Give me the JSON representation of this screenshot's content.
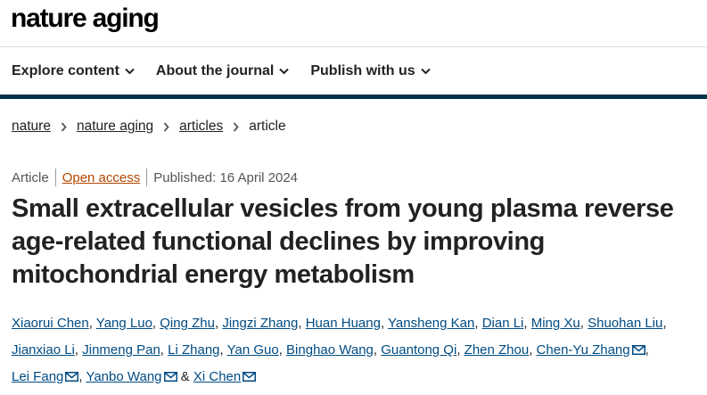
{
  "site": {
    "logo": "nature aging"
  },
  "nav": {
    "items": [
      {
        "label": "Explore content"
      },
      {
        "label": "About the journal"
      },
      {
        "label": "Publish with us"
      }
    ]
  },
  "breadcrumb": {
    "items": [
      "nature",
      "nature aging",
      "articles"
    ],
    "current": "article"
  },
  "article": {
    "type": "Article",
    "access": "Open access",
    "published": "Published: 16 April 2024",
    "title": "Small extracellular vesicles from young plasma reverse age-related functional declines by improving mitochondrial energy metabolism",
    "authors": [
      "Xiaorui Chen",
      "Yang Luo",
      "Qing Zhu",
      "Jingzi Zhang",
      "Huan Huang",
      "Yansheng Kan",
      "Dian Li",
      "Ming Xu",
      "Shuohan Liu",
      "Jianxiao Li",
      "Jinmeng Pan",
      "Li Zhang",
      "Yan Guo",
      "Binghao Wang",
      "Guantong Qi",
      "Zhen Zhou",
      "Chen-Yu Zhang",
      "Lei Fang",
      "Yanbo Wang",
      "Xi Chen"
    ],
    "author_sep": ", ",
    "author_last_sep": " & "
  },
  "colors": {
    "navy_bar": "#01324b",
    "link": "#004b83",
    "open_access": "#b34800"
  },
  "icons": {
    "chevron": "chevron-down-icon",
    "breadcrumb_sep": "chevron-right-icon",
    "mail": "mail-icon"
  }
}
